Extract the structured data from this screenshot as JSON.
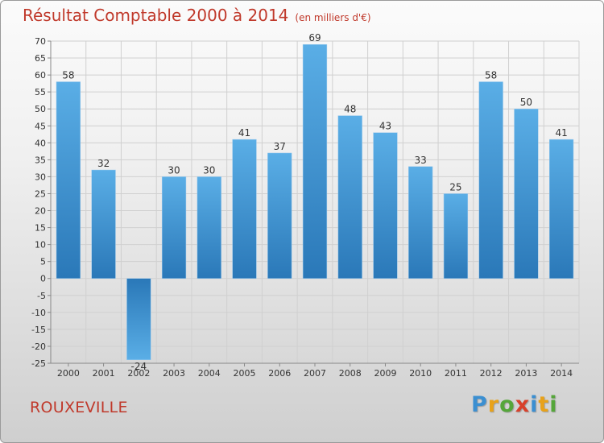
{
  "header": {
    "title": "Résultat Comptable 2000 à 2014",
    "unit": "(en milliers d'€)"
  },
  "footer": {
    "city": "ROUXEVILLE",
    "logo_letters": [
      "P",
      "r",
      "o",
      "x",
      "i",
      "t",
      "i"
    ],
    "logo_colors": [
      "#3b8fd1",
      "#e8a21a",
      "#55a63a",
      "#d8402a",
      "#3b8fd1",
      "#e8a21a",
      "#55a63a"
    ]
  },
  "colors": {
    "title": "#c0392b",
    "bar_light": "#5aaee6",
    "bar_dark": "#2a78b8",
    "grid": "#d0d0d0"
  },
  "chart_data": {
    "type": "bar",
    "title": "Résultat Comptable 2000 à 2014",
    "xlabel": "",
    "ylabel": "",
    "ylim": [
      -25,
      70
    ],
    "ytick_step": 5,
    "grid": true,
    "categories": [
      "2000",
      "2001",
      "2002",
      "2003",
      "2004",
      "2005",
      "2006",
      "2007",
      "2008",
      "2009",
      "2010",
      "2011",
      "2012",
      "2013",
      "2014"
    ],
    "values": [
      58,
      32,
      -24,
      30,
      30,
      41,
      37,
      69,
      48,
      43,
      33,
      25,
      58,
      50,
      41
    ]
  }
}
